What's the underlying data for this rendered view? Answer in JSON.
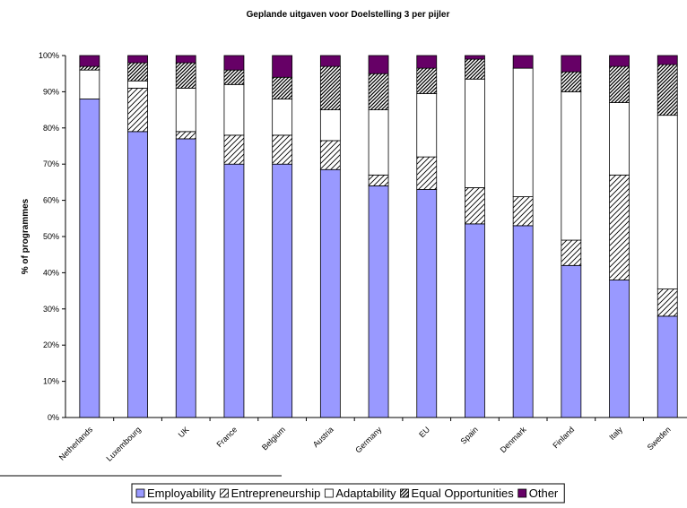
{
  "chart_data": {
    "type": "bar",
    "stacked": true,
    "title": "Geplande uitgaven voor Doelstelling 3 per pijler",
    "xlabel": "",
    "ylabel": "% of programmes",
    "ylim": [
      0,
      100
    ],
    "yticks": [
      "0%",
      "10%",
      "20%",
      "30%",
      "40%",
      "50%",
      "60%",
      "70%",
      "80%",
      "90%",
      "100%"
    ],
    "grid": false,
    "legend_position": "bottom",
    "categories": [
      "Netherlands",
      "Luxembourg",
      "UK",
      "France",
      "Belgium",
      "Austria",
      "Germany",
      "EU",
      "Spain",
      "Denmark",
      "Finland",
      "Italy",
      "Sweden"
    ],
    "series": [
      {
        "name": "Employability",
        "fill": "solid",
        "color": "#9999ff",
        "values": [
          88,
          79,
          77,
          70,
          70,
          68.5,
          64,
          63,
          53.5,
          53,
          42,
          38,
          28
        ]
      },
      {
        "name": "Entrepreneurship",
        "fill": "diagonal-light",
        "color": "#ffffff",
        "values": [
          0,
          12,
          2,
          8,
          8,
          8,
          3,
          9,
          10,
          8,
          7,
          29,
          7.5
        ]
      },
      {
        "name": "Adaptability",
        "fill": "solid",
        "color": "#ffffff",
        "values": [
          8,
          2,
          12,
          14,
          10,
          8.5,
          18,
          17.5,
          30,
          35.5,
          41,
          20,
          48
        ]
      },
      {
        "name": "Equal Opportunities",
        "fill": "diagonal-dense",
        "color": "#ffffff",
        "values": [
          1,
          5,
          7,
          4,
          6,
          12,
          10,
          7,
          5.5,
          0,
          5.5,
          10,
          14
        ]
      },
      {
        "name": "Other",
        "fill": "solid",
        "color": "#660066",
        "values": [
          3,
          2,
          2,
          4,
          6,
          3,
          5,
          3.5,
          1,
          3.5,
          4.5,
          3,
          2.5
        ]
      }
    ]
  }
}
